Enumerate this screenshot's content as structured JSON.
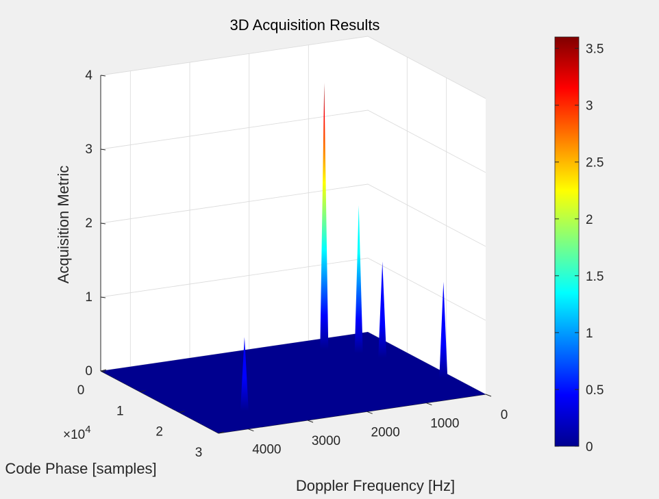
{
  "chart_data": {
    "type": "surface3d",
    "title": "3D Acquisition Results",
    "xlabel": "Doppler Frequency [Hz]",
    "ylabel": "Code Phase [samples]",
    "zlabel": "Acquisition Metric",
    "y_exponent_label": "×10",
    "y_exponent_power": "4",
    "xlim": [
      0,
      4500
    ],
    "ylim": [
      0,
      30000
    ],
    "zlim": [
      0,
      4
    ],
    "x_ticks": [
      {
        "value": 0,
        "label": "0"
      },
      {
        "value": 1000,
        "label": "1000"
      },
      {
        "value": 2000,
        "label": "2000"
      },
      {
        "value": 3000,
        "label": "3000"
      },
      {
        "value": 4000,
        "label": "4000"
      }
    ],
    "y_ticks": [
      {
        "value": 0,
        "label": "0"
      },
      {
        "value": 10000,
        "label": "1"
      },
      {
        "value": 20000,
        "label": "2"
      },
      {
        "value": 30000,
        "label": "3"
      }
    ],
    "z_ticks": [
      {
        "value": 0,
        "label": "0"
      },
      {
        "value": 1,
        "label": "1"
      },
      {
        "value": 2,
        "label": "2"
      },
      {
        "value": 3,
        "label": "3"
      },
      {
        "value": 4,
        "label": "4"
      }
    ],
    "peaks": [
      {
        "doppler": 3600,
        "code_phase": 23000,
        "metric": 1.0
      },
      {
        "doppler": 1000,
        "code_phase": 4000,
        "metric": 3.6
      },
      {
        "doppler": 650,
        "code_phase": 7500,
        "metric": 2.0
      },
      {
        "doppler": 450,
        "code_phase": 10500,
        "metric": 1.3
      },
      {
        "doppler": 150,
        "code_phase": 21500,
        "metric": 1.3
      }
    ],
    "grid": true,
    "colormap": "jet",
    "floor_color": "#00008f",
    "colorbar": {
      "clim": [
        0,
        3.6
      ],
      "ticks": [
        {
          "value": 0,
          "label": "0"
        },
        {
          "value": 0.5,
          "label": "0.5"
        },
        {
          "value": 1,
          "label": "1"
        },
        {
          "value": 1.5,
          "label": "1.5"
        },
        {
          "value": 2,
          "label": "2"
        },
        {
          "value": 2.5,
          "label": "2.5"
        },
        {
          "value": 3,
          "label": "3"
        },
        {
          "value": 3.5,
          "label": "3.5"
        }
      ]
    }
  }
}
